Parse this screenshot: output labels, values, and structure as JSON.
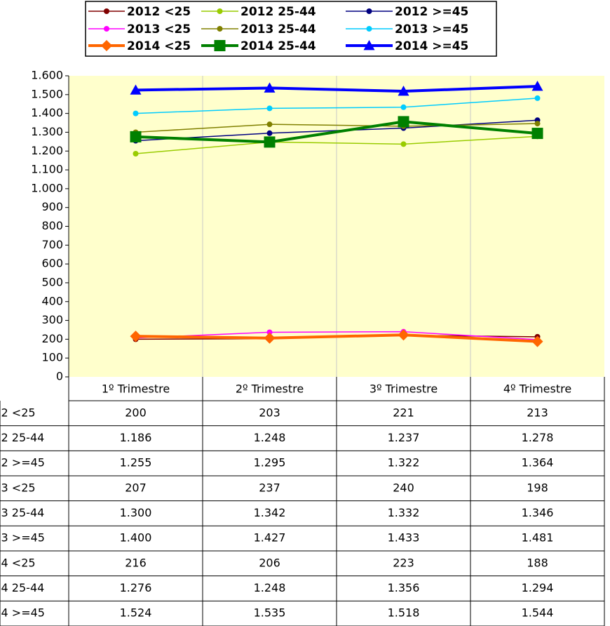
{
  "chart_data": {
    "type": "line",
    "categories": [
      "1º Trimestre",
      "2º Trimestre",
      "3º Trimestre",
      "4º Trimestre"
    ],
    "ylim": [
      0,
      1600
    ],
    "yticks": [
      0,
      100,
      200,
      300,
      400,
      500,
      600,
      700,
      800,
      900,
      {
        "value": 1000,
        "label": "1.000"
      },
      {
        "value": 1100,
        "label": "1.100"
      },
      {
        "value": 1200,
        "label": "1.200"
      },
      {
        "value": 1300,
        "label": "1.300"
      },
      {
        "value": 1400,
        "label": "1.400"
      },
      {
        "value": 1500,
        "label": "1.500"
      },
      {
        "value": 1600,
        "label": "1.600"
      }
    ],
    "plot_background": "#ffffcc",
    "series": [
      {
        "name": "2012 <25",
        "color": "#800000",
        "marker": "circle",
        "width": 1.5,
        "values": [
          200,
          203,
          221,
          213
        ],
        "value_labels": [
          "200",
          "203",
          "221",
          "213"
        ]
      },
      {
        "name": "2012 25-44",
        "color": "#99cc00",
        "marker": "circle",
        "width": 1.5,
        "values": [
          1186,
          1248,
          1237,
          1278
        ],
        "value_labels": [
          "1.186",
          "1.248",
          "1.237",
          "1.278"
        ]
      },
      {
        "name": "2012 >=45",
        "color": "#000080",
        "marker": "circle",
        "width": 1.5,
        "values": [
          1255,
          1295,
          1322,
          1364
        ],
        "value_labels": [
          "1.255",
          "1.295",
          "1.322",
          "1.364"
        ]
      },
      {
        "name": "2013 <25",
        "color": "#ff00ff",
        "marker": "circle",
        "width": 1.5,
        "values": [
          207,
          237,
          240,
          198
        ],
        "value_labels": [
          "207",
          "237",
          "240",
          "198"
        ]
      },
      {
        "name": "2013 25-44",
        "color": "#808000",
        "marker": "circle",
        "width": 1.5,
        "values": [
          1300,
          1342,
          1332,
          1346
        ],
        "value_labels": [
          "1.300",
          "1.342",
          "1.332",
          "1.346"
        ]
      },
      {
        "name": "2013 >=45",
        "color": "#00ccff",
        "marker": "circle",
        "width": 1.5,
        "values": [
          1400,
          1427,
          1433,
          1481
        ],
        "value_labels": [
          "1.400",
          "1.427",
          "1.433",
          "1.481"
        ]
      },
      {
        "name": "2014 <25",
        "color": "#ff6600",
        "marker": "diamond",
        "width": 4,
        "values": [
          216,
          206,
          223,
          188
        ],
        "value_labels": [
          "216",
          "206",
          "223",
          "188"
        ]
      },
      {
        "name": "2014 25-44",
        "color": "#008000",
        "marker": "square",
        "width": 4,
        "values": [
          1276,
          1248,
          1356,
          1294
        ],
        "value_labels": [
          "1.276",
          "1.248",
          "1.356",
          "1.294"
        ]
      },
      {
        "name": "2014 >=45",
        "color": "#0000ff",
        "marker": "triangle",
        "width": 4,
        "values": [
          1524,
          1535,
          1518,
          1544
        ],
        "value_labels": [
          "1.524",
          "1.535",
          "1.518",
          "1.544"
        ]
      }
    ]
  }
}
